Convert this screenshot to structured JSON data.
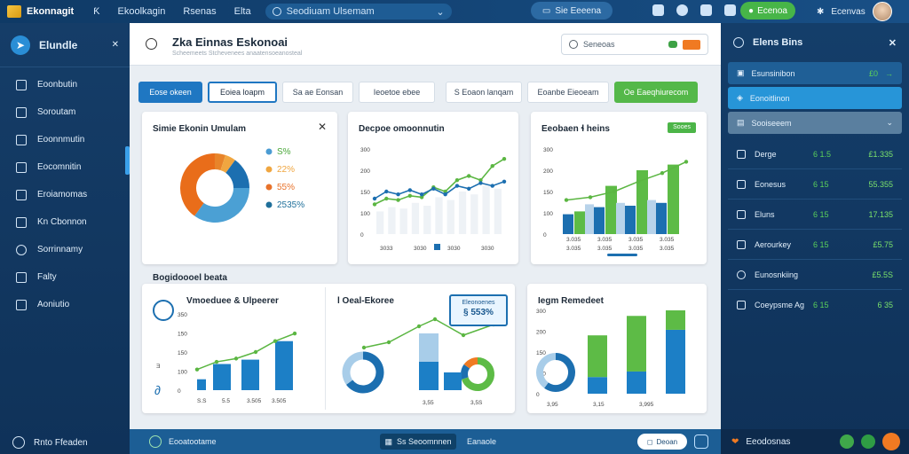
{
  "topbar": {
    "app_name": "Ekonnagit",
    "nav": [
      "Ƙ",
      "Ekoolkagin",
      "Rsenas",
      "Elta"
    ],
    "search_text": "Seodiuam Ulsemam",
    "pill_label": "Sie Eeeena",
    "green_label": "Ecenoa",
    "user_name": "Ecenvas"
  },
  "sidebar": {
    "title": "Elundle",
    "items": [
      "Eoonbutin",
      "Soroutam",
      "Eoonnmutin",
      "Eocomnitin",
      "Eroiamomas",
      "Kn Cbonnon",
      "Sorrinnamy",
      "Falty",
      "Aoniutio"
    ],
    "footer": "Rnto Ffeaden"
  },
  "main": {
    "title": "Zka  Einnas Eskonoai",
    "subtitle": "Scheemeets Stchevenees anaatensoeanosteal",
    "search_placeholder": "Seneoas",
    "filters": [
      {
        "label": "Eose okeen",
        "style": "primary"
      },
      {
        "label": "Eoiea loapm",
        "style": "outline"
      },
      {
        "label": "Sa ae Eonsan",
        "style": "plain"
      },
      {
        "label": "Ieoetoe ebee",
        "style": "plain"
      },
      {
        "label": "S Eoaon lanqam",
        "style": "plain"
      },
      {
        "label": "Eoanbe Eieoeam",
        "style": "plain"
      },
      {
        "label": "Oe Eaeqhiurecom",
        "style": "green"
      }
    ],
    "section_label": "Bogidoooel beata",
    "cards": {
      "donut_title": "Simie Ekonin Umulam",
      "line_title": "Decpoe omoonnutin",
      "bar_title": "Eeobaen ɬ heins",
      "bar_badge": "Sooes",
      "vb_title": "Vmoeduee & Ulpeerer",
      "mixed_title": "l Oeal-Ekoree",
      "mixed_callout": "§ 553%",
      "mixed_callout_top": "Eleonoenes",
      "rb_title": "Iegm Remedeet"
    }
  },
  "bottombar": {
    "label": "Eooatootame",
    "pill": "Ss Seoomnnen",
    "text": "Eanaole",
    "button": "Deoan"
  },
  "rpanel": {
    "title": "Elens Bins",
    "rows": [
      {
        "label": "Esunsinibon",
        "value": "£0"
      },
      {
        "label": "Eonoitlinon",
        "value": ""
      },
      {
        "label": "Sooiseeem",
        "value": ""
      }
    ],
    "stats": [
      {
        "label": "Derge",
        "v1": "6 1.5",
        "v2": "£1.335"
      },
      {
        "label": "Eonesus",
        "v1": "6 15",
        "v2": "55.355"
      },
      {
        "label": "Eluns",
        "v1": "6 15",
        "v2": "17.135"
      },
      {
        "label": "Aerourkey",
        "v1": "6 15",
        "v2": "£5.75"
      },
      {
        "label": "Eunosnkiing",
        "v1": "",
        "v2": "£5.5S"
      },
      {
        "label": "Coeypsme Ag",
        "v1": "6 15",
        "v2": "6 35"
      }
    ],
    "footer": "Eeodosnas"
  },
  "chart_data": [
    {
      "type": "pie",
      "title": "Simie Ekonin Umulam",
      "legend": [
        "S%",
        "22%",
        "55%",
        "2535%"
      ],
      "values": [
        0.05,
        0.05,
        0.15,
        0.35,
        0.4
      ],
      "colors": [
        "#e8842a",
        "#f0a640",
        "#1c6fb0",
        "#4ba0d4",
        "#e96d1a"
      ],
      "legend_colors": [
        "#4b9cd3",
        "#f0a640",
        "#e8722a",
        "#1f6f9a"
      ]
    },
    {
      "type": "line",
      "title": "Decpoe omoonnutin",
      "y_ticks": [
        "300",
        "200",
        "150",
        "100",
        "0"
      ],
      "x_labels": [
        "3033",
        "3030",
        "3030",
        "3030"
      ],
      "ylim": [
        0,
        300
      ],
      "series": [
        {
          "color": "#5bb642",
          "values": [
            105,
            125,
            120,
            135,
            130,
            165,
            150,
            190,
            205,
            190,
            240,
            265
          ]
        },
        {
          "color": "#1c6fb0",
          "values": [
            125,
            150,
            140,
            155,
            140,
            160,
            140,
            170,
            160,
            180,
            170,
            185
          ]
        }
      ],
      "bars": [
        80,
        95,
        90,
        110,
        100,
        130,
        120,
        150,
        140,
        170,
        160
      ]
    },
    {
      "type": "bar",
      "title": "Eeobaen ɬ heins",
      "y_ticks": [
        "300",
        "200",
        "150",
        "100",
        "0"
      ],
      "x_labels": [
        "3.035",
        "3.035",
        "3.035",
        "3.035"
      ],
      "ylim": [
        0,
        300
      ],
      "groups": [
        {
          "dark": 70,
          "light": 80
        },
        {
          "dark": 95,
          "light": 170
        },
        {
          "dark": 100,
          "light": 225
        },
        {
          "dark": 110,
          "light": 245
        }
      ],
      "line": [
        120,
        130,
        150,
        185,
        215,
        255
      ]
    },
    {
      "type": "bar",
      "title": "Vmoeduee & Ulpeerer",
      "y_ticks": [
        "350",
        "150",
        "150",
        "100",
        "0"
      ],
      "x_labels": [
        "S.S",
        "5.5",
        "3.505",
        "3.505"
      ],
      "ylim": [
        0,
        350
      ],
      "bars": [
        50,
        120,
        140,
        225
      ],
      "line": [
        95,
        130,
        145,
        175,
        225,
        260
      ]
    },
    {
      "type": "bar",
      "title": "l Oeal-Ekoree",
      "x_labels": [
        "3,55",
        "3,5S"
      ],
      "bars": [
        {
          "blue": 0.35,
          "light": 0.45
        },
        {
          "blue": 0.25,
          "green": 0.55
        }
      ],
      "donuts": [
        0.65,
        0.7
      ]
    },
    {
      "type": "bar",
      "title": "Iegm Remedeet",
      "y_ticks": [
        "300",
        "200",
        "150",
        "100",
        "0"
      ],
      "x_labels": [
        "3,95",
        "3,15",
        "3,995"
      ],
      "ylim": [
        0,
        300
      ],
      "bars": [
        {
          "blue": 60,
          "green": 150
        },
        {
          "blue": 80,
          "green": 200
        },
        {
          "blue": 230,
          "green": 70
        }
      ],
      "donut": 0.6
    }
  ]
}
